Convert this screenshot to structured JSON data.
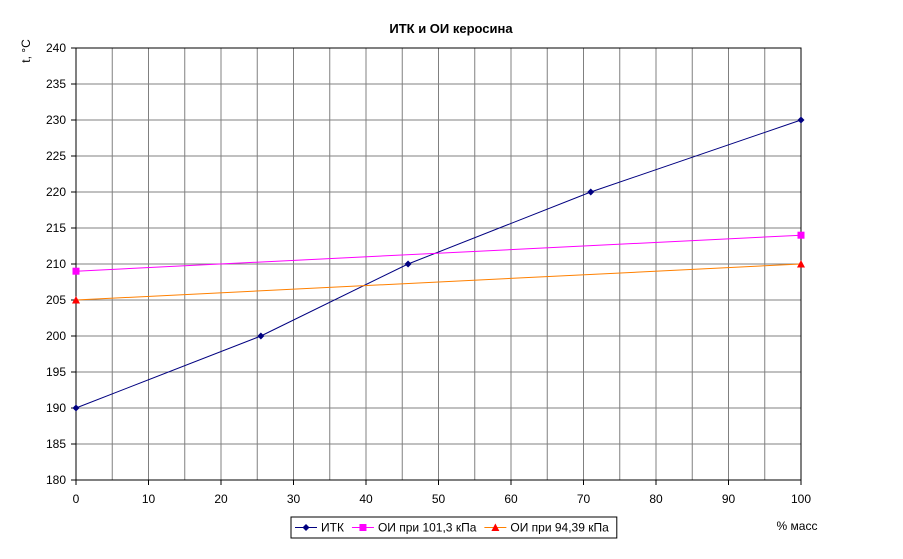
{
  "chart_data": {
    "type": "line",
    "title": "ИТК и ОИ керосина",
    "xlabel": "% масс",
    "ylabel": "t, °C",
    "xlim": [
      0,
      100
    ],
    "ylim": [
      180,
      240
    ],
    "xticks": [
      0,
      10,
      20,
      30,
      40,
      50,
      60,
      70,
      80,
      90,
      100
    ],
    "yticks": [
      180,
      185,
      190,
      195,
      200,
      205,
      210,
      215,
      220,
      225,
      230,
      235,
      240
    ],
    "grid": true,
    "legend_position": "bottom",
    "series": [
      {
        "name": "ИТК",
        "color": "#000080",
        "marker": "diamond",
        "x": [
          0,
          25.5,
          45.8,
          71,
          100
        ],
        "y": [
          190,
          200,
          210,
          220,
          230
        ]
      },
      {
        "name": "ОИ при 101,3 кПа",
        "color": "#ff00ff",
        "marker": "square",
        "x": [
          0,
          100
        ],
        "y": [
          209,
          214
        ]
      },
      {
        "name": "ОИ при 94,39 кПа",
        "color": "#ff6600",
        "line_color": "#ff8000",
        "marker_color": "#ff0000",
        "marker": "triangle",
        "x": [
          0,
          100
        ],
        "y": [
          205,
          210
        ]
      }
    ]
  }
}
